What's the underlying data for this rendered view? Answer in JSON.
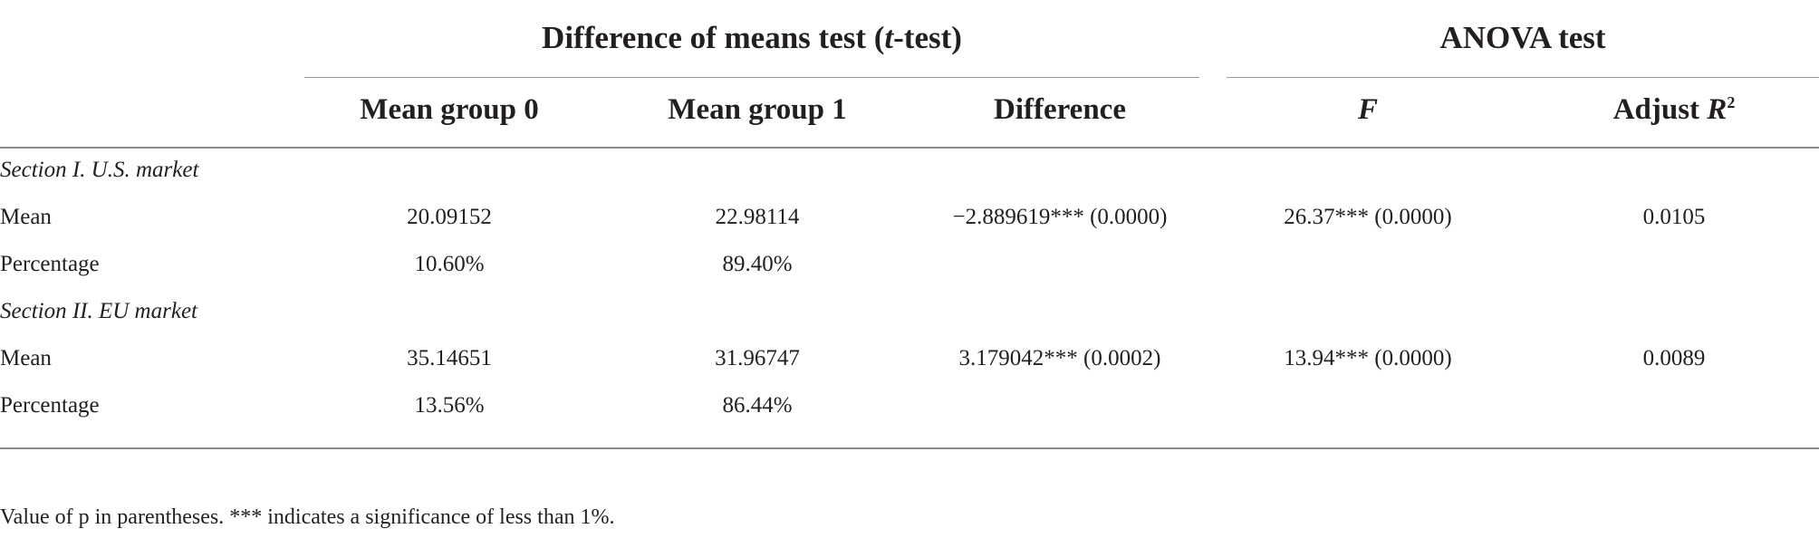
{
  "header": {
    "group_ttest_prefix": "Difference of means test (",
    "group_ttest_t": "t",
    "group_ttest_suffix": "-test)",
    "group_anova": "ANOVA test",
    "columns": {
      "mean_group0": "Mean group 0",
      "mean_group1": "Mean group 1",
      "difference": "Difference",
      "f": "F",
      "adjust_prefix": "Adjust ",
      "adjust_r": "R",
      "adjust_sup": "2"
    }
  },
  "sections": [
    {
      "title": "Section I. U.S. market",
      "rows": [
        {
          "label": "Mean",
          "g0": "20.09152",
          "g1": "22.98114",
          "diff": "−2.889619*** (0.0000)",
          "f": "26.37*** (0.0000)",
          "r2": "0.0105"
        },
        {
          "label": "Percentage",
          "g0": "10.60%",
          "g1": "89.40%",
          "diff": "",
          "f": "",
          "r2": ""
        }
      ]
    },
    {
      "title": "Section II. EU market",
      "rows": [
        {
          "label": "Mean",
          "g0": "35.14651",
          "g1": "31.96747",
          "diff": "3.179042*** (0.0002)",
          "f": "13.94*** (0.0000)",
          "r2": "0.0089"
        },
        {
          "label": "Percentage",
          "g0": "13.56%",
          "g1": "86.44%",
          "diff": "",
          "f": "",
          "r2": ""
        }
      ]
    }
  ],
  "footnote": "Value of p in parentheses. *** indicates a significance of less than 1%."
}
